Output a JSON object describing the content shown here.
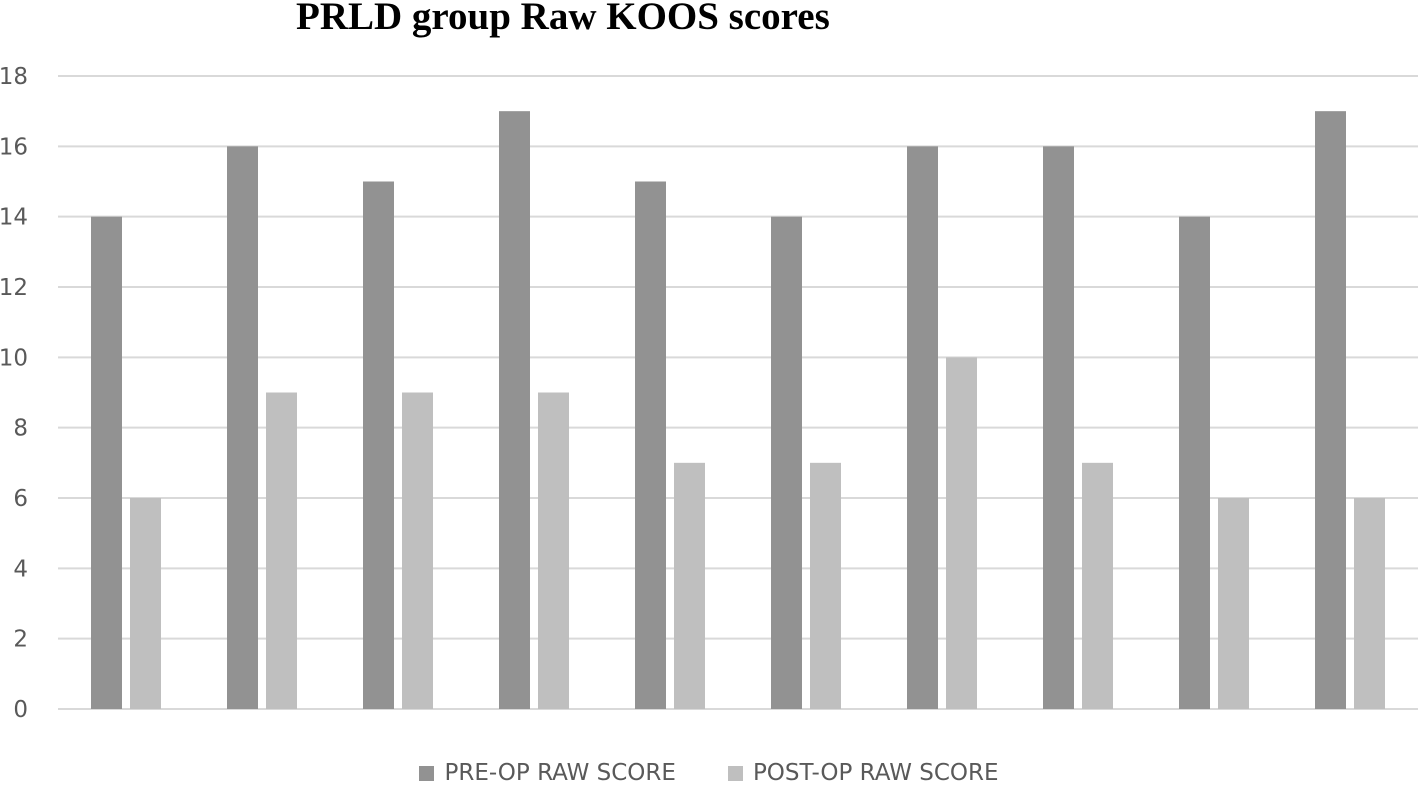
{
  "chart_data": {
    "type": "bar",
    "title": "PRLD group Raw KOOS scores",
    "categories": [
      "",
      "",
      "",
      "",
      "",
      "",
      "",
      "",
      "",
      ""
    ],
    "series": [
      {
        "name": "PRE-OP RAW SCORE",
        "color": "#929292",
        "values": [
          14,
          16,
          15,
          17,
          15,
          14,
          16,
          16,
          14,
          17
        ]
      },
      {
        "name": "POST-OP RAW SCORE",
        "color": "#bfbfbf",
        "values": [
          6,
          9,
          9,
          9,
          7,
          7,
          10,
          7,
          6,
          6
        ]
      }
    ],
    "ylim": [
      0,
      18
    ],
    "yticks": [
      0,
      2,
      4,
      6,
      8,
      10,
      12,
      14,
      16,
      18
    ],
    "grid": true,
    "legend_position": "bottom",
    "gridline_color": "#d9d9d9"
  }
}
